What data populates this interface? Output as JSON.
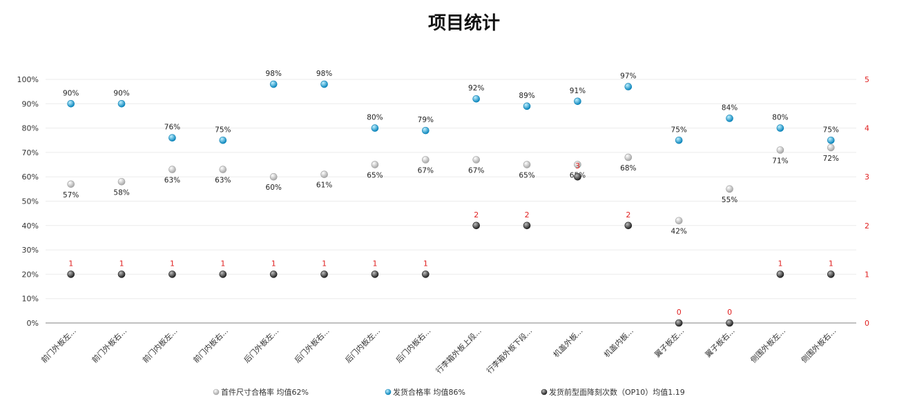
{
  "chart_data": {
    "type": "scatter",
    "title": "项目统计",
    "categories": [
      "前门外板左...",
      "前门外板右...",
      "前门内板左...",
      "前门内板右...",
      "后门外板左...",
      "后门外板右...",
      "后门内板左...",
      "后门内板右...",
      "行李箱外板上段...",
      "行李箱外板下段...",
      "机盖外板...",
      "机盖内板...",
      "翼子板左...",
      "翼子板右...",
      "侧围外板左...",
      "侧围外板右..."
    ],
    "y_left": {
      "min": 0,
      "max": 100,
      "step": 10,
      "unit": "%"
    },
    "y_right": {
      "min": 0,
      "max": 5,
      "step": 1
    },
    "grid": true,
    "legend_position": "bottom",
    "series": [
      {
        "name": "首件尺寸合格率 均值62%",
        "axis": "left",
        "color": "#c8c8c8",
        "label_position": "below",
        "values": [
          57,
          58,
          63,
          63,
          60,
          61,
          65,
          67,
          67,
          65,
          65,
          68,
          42,
          55,
          71,
          72
        ],
        "labels": [
          "57%",
          "58%",
          "63%",
          "63%",
          "60%",
          "61%",
          "65%",
          "67%",
          "67%",
          "65%",
          "65%",
          "68%",
          "42%",
          "55%",
          "71%",
          "72%"
        ]
      },
      {
        "name": "发货合格率 均值86%",
        "axis": "left",
        "color": "#1aa3d9",
        "label_position": "above",
        "values": [
          90,
          90,
          76,
          75,
          98,
          98,
          80,
          79,
          92,
          89,
          91,
          97,
          75,
          84,
          80,
          75
        ],
        "labels": [
          "90%",
          "90%",
          "76%",
          "75%",
          "98%",
          "98%",
          "80%",
          "79%",
          "92%",
          "89%",
          "91%",
          "97%",
          "75%",
          "84%",
          "80%",
          "75%"
        ]
      },
      {
        "name": "发货前型面降刻次数（OP10）均值1.19",
        "axis": "right",
        "color": "#4a4a4a",
        "label_position": "above",
        "values": [
          1,
          1,
          1,
          1,
          1,
          1,
          1,
          1,
          2,
          2,
          3,
          2,
          0,
          0,
          1,
          1
        ],
        "labels": [
          "1",
          "1",
          "1",
          "1",
          "1",
          "1",
          "1",
          "1",
          "2",
          "2",
          "3",
          "2",
          "0",
          "0",
          "1",
          "1"
        ]
      }
    ]
  }
}
